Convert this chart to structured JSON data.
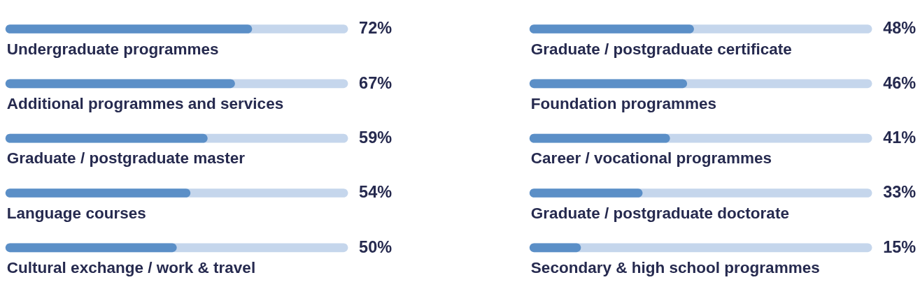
{
  "chart_data": [
    {
      "type": "bar",
      "orientation": "horizontal",
      "categories": [
        "Undergraduate programmes",
        "Additional programmes and services",
        "Graduate / postgraduate master",
        "Language courses",
        "Cultural exchange / work & travel"
      ],
      "values": [
        72,
        67,
        59,
        54,
        50
      ],
      "value_labels": [
        "72%",
        "67%",
        "59%",
        "54%",
        "50%"
      ],
      "color": "#5b8fc7",
      "xlim": [
        0,
        100
      ],
      "tick_labels": false
    },
    {
      "type": "bar",
      "orientation": "horizontal",
      "categories": [
        "Graduate / postgraduate certificate",
        "Foundation programmes",
        "Career / vocational programmes",
        "Graduate / postgraduate doctorate",
        "Secondary & high school programmes"
      ],
      "values": [
        48,
        46,
        41,
        33,
        15
      ],
      "value_labels": [
        "48%",
        "46%",
        "41%",
        "33%",
        "15%"
      ],
      "color": "#5b8fc7",
      "xlim": [
        0,
        100
      ],
      "tick_labels": false
    }
  ]
}
